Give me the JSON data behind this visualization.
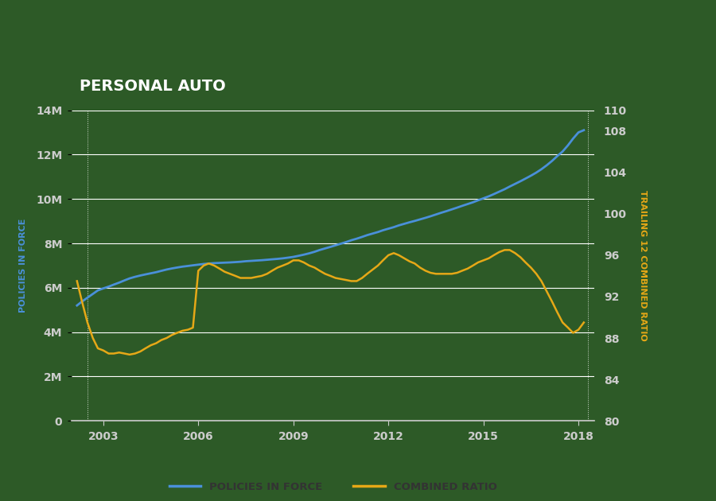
{
  "title": "PERSONAL AUTO",
  "title_bg": "#000000",
  "title_color": "#ffffff",
  "bg_color": "#2d5a27",
  "outer_bg": "#2d5a27",
  "ylabel_left": "POLICIES IN FORCE",
  "ylabel_right": "TRAILING 12 COMBINED RATIO",
  "ylabel_left_color": "#4a90d9",
  "ylabel_right_color": "#e6a817",
  "xlim": [
    2002.0,
    2018.5
  ],
  "ylim_left": [
    0,
    14000000
  ],
  "ylim_right": [
    80,
    110
  ],
  "xticks": [
    2003,
    2006,
    2009,
    2012,
    2015,
    2018
  ],
  "yticks_left": [
    0,
    2000000,
    4000000,
    6000000,
    8000000,
    10000000,
    12000000,
    14000000
  ],
  "yticks_right": [
    80,
    84,
    88,
    92,
    96,
    100,
    104,
    108,
    110
  ],
  "ytick_labels_left": [
    "0",
    "2M",
    "4M",
    "6M",
    "8M",
    "10M",
    "12M",
    "14M"
  ],
  "ytick_labels_right": [
    "80",
    "84",
    "88",
    "92",
    "96",
    "100",
    "104",
    "108",
    "110"
  ],
  "line_pif_color": "#4a90d9",
  "line_cr_color": "#e6a817",
  "legend_label_pif": "POLICIES IN FORCE",
  "legend_label_cr": "COMBINED RATIO",
  "tick_color": "#cccccc",
  "grid_color": "#ffffff",
  "pif_x": [
    2002.17,
    2002.33,
    2002.5,
    2002.67,
    2002.83,
    2003.0,
    2003.17,
    2003.33,
    2003.5,
    2003.67,
    2003.83,
    2004.0,
    2004.17,
    2004.33,
    2004.5,
    2004.67,
    2004.83,
    2005.0,
    2005.17,
    2005.33,
    2005.5,
    2005.67,
    2005.83,
    2006.0,
    2006.17,
    2006.33,
    2006.5,
    2006.67,
    2006.83,
    2007.0,
    2007.17,
    2007.33,
    2007.5,
    2007.67,
    2007.83,
    2008.0,
    2008.17,
    2008.33,
    2008.5,
    2008.67,
    2008.83,
    2009.0,
    2009.17,
    2009.33,
    2009.5,
    2009.67,
    2009.83,
    2010.0,
    2010.17,
    2010.33,
    2010.5,
    2010.67,
    2010.83,
    2011.0,
    2011.17,
    2011.33,
    2011.5,
    2011.67,
    2011.83,
    2012.0,
    2012.17,
    2012.33,
    2012.5,
    2012.67,
    2012.83,
    2013.0,
    2013.17,
    2013.33,
    2013.5,
    2013.67,
    2013.83,
    2014.0,
    2014.17,
    2014.33,
    2014.5,
    2014.67,
    2014.83,
    2015.0,
    2015.17,
    2015.33,
    2015.5,
    2015.67,
    2015.83,
    2016.0,
    2016.17,
    2016.33,
    2016.5,
    2016.67,
    2016.83,
    2017.0,
    2017.17,
    2017.33,
    2017.5,
    2017.67,
    2017.83,
    2018.0,
    2018.17
  ],
  "pif_y": [
    5200000,
    5380000,
    5550000,
    5720000,
    5880000,
    5970000,
    6050000,
    6140000,
    6230000,
    6330000,
    6420000,
    6490000,
    6550000,
    6600000,
    6650000,
    6700000,
    6760000,
    6820000,
    6870000,
    6910000,
    6950000,
    6980000,
    7010000,
    7040000,
    7070000,
    7090000,
    7110000,
    7120000,
    7130000,
    7140000,
    7155000,
    7170000,
    7195000,
    7210000,
    7225000,
    7240000,
    7260000,
    7280000,
    7300000,
    7325000,
    7355000,
    7390000,
    7440000,
    7490000,
    7550000,
    7620000,
    7700000,
    7770000,
    7840000,
    7910000,
    7985000,
    8060000,
    8140000,
    8210000,
    8290000,
    8370000,
    8440000,
    8510000,
    8590000,
    8660000,
    8730000,
    8810000,
    8880000,
    8950000,
    9010000,
    9080000,
    9150000,
    9220000,
    9300000,
    9380000,
    9450000,
    9530000,
    9610000,
    9690000,
    9770000,
    9850000,
    9940000,
    10030000,
    10120000,
    10220000,
    10330000,
    10440000,
    10560000,
    10680000,
    10800000,
    10920000,
    11050000,
    11190000,
    11340000,
    11520000,
    11720000,
    11930000,
    12140000,
    12420000,
    12720000,
    13000000,
    13100000
  ],
  "cr_x": [
    2002.17,
    2002.33,
    2002.5,
    2002.67,
    2002.83,
    2003.0,
    2003.17,
    2003.33,
    2003.5,
    2003.67,
    2003.83,
    2004.0,
    2004.17,
    2004.33,
    2004.5,
    2004.67,
    2004.83,
    2005.0,
    2005.17,
    2005.33,
    2005.5,
    2005.67,
    2005.83,
    2006.0,
    2006.17,
    2006.33,
    2006.5,
    2006.67,
    2006.83,
    2007.0,
    2007.17,
    2007.33,
    2007.5,
    2007.67,
    2007.83,
    2008.0,
    2008.17,
    2008.33,
    2008.5,
    2008.67,
    2008.83,
    2009.0,
    2009.17,
    2009.33,
    2009.5,
    2009.67,
    2009.83,
    2010.0,
    2010.17,
    2010.33,
    2010.5,
    2010.67,
    2010.83,
    2011.0,
    2011.17,
    2011.33,
    2011.5,
    2011.67,
    2011.83,
    2012.0,
    2012.17,
    2012.33,
    2012.5,
    2012.67,
    2012.83,
    2013.0,
    2013.17,
    2013.33,
    2013.5,
    2013.67,
    2013.83,
    2014.0,
    2014.17,
    2014.33,
    2014.5,
    2014.67,
    2014.83,
    2015.0,
    2015.17,
    2015.33,
    2015.5,
    2015.67,
    2015.83,
    2016.0,
    2016.17,
    2016.33,
    2016.5,
    2016.67,
    2016.83,
    2017.0,
    2017.17,
    2017.33,
    2017.5,
    2017.67,
    2017.83,
    2018.0,
    2018.17
  ],
  "cr_y": [
    93.5,
    91.5,
    89.5,
    88.0,
    87.0,
    86.8,
    86.5,
    86.5,
    86.6,
    86.5,
    86.4,
    86.5,
    86.7,
    87.0,
    87.3,
    87.5,
    87.8,
    88.0,
    88.3,
    88.5,
    88.7,
    88.8,
    89.0,
    94.5,
    95.0,
    95.2,
    95.0,
    94.7,
    94.4,
    94.2,
    94.0,
    93.8,
    93.8,
    93.8,
    93.9,
    94.0,
    94.2,
    94.5,
    94.8,
    95.0,
    95.2,
    95.5,
    95.5,
    95.3,
    95.0,
    94.8,
    94.5,
    94.2,
    94.0,
    93.8,
    93.7,
    93.6,
    93.5,
    93.5,
    93.8,
    94.2,
    94.6,
    95.0,
    95.5,
    96.0,
    96.2,
    96.0,
    95.7,
    95.4,
    95.2,
    94.8,
    94.5,
    94.3,
    94.2,
    94.2,
    94.2,
    94.2,
    94.3,
    94.5,
    94.7,
    95.0,
    95.3,
    95.5,
    95.7,
    96.0,
    96.3,
    96.5,
    96.5,
    96.2,
    95.8,
    95.3,
    94.8,
    94.2,
    93.5,
    92.5,
    91.5,
    90.5,
    89.5,
    89.0,
    88.5,
    88.8,
    89.5
  ]
}
